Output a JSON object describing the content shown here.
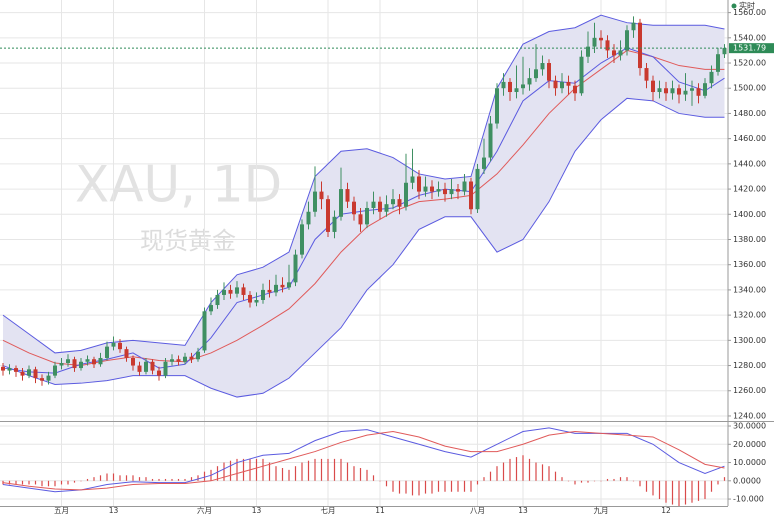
{
  "chart_data": [
    {
      "type": "candlestick",
      "watermark": "XAU, 1D",
      "subtitle": "现货黄金",
      "status": "实时",
      "last_price": 1531.79,
      "last_price_color": "#2e8b57",
      "categories": [
        null,
        null,
        null,
        null,
        null,
        null,
        null,
        null,
        null,
        "五月",
        null,
        null,
        null,
        null,
        null,
        null,
        null,
        "13",
        null,
        null,
        null,
        null,
        null,
        null,
        null,
        null,
        null,
        null,
        null,
        null,
        null,
        "六月",
        null,
        null,
        null,
        null,
        null,
        null,
        null,
        "13",
        null,
        null,
        null,
        null,
        null,
        null,
        null,
        null,
        null,
        null,
        "七月",
        null,
        null,
        null,
        null,
        null,
        null,
        null,
        "11",
        null,
        null,
        null,
        null,
        null,
        null,
        null,
        null,
        null,
        null,
        null,
        null,
        null,
        null,
        "八月",
        null,
        null,
        null,
        null,
        null,
        null,
        "13",
        null,
        null,
        null,
        null,
        null,
        null,
        null,
        null,
        null,
        null,
        null,
        "九月",
        null,
        null,
        null,
        null,
        null,
        null,
        null,
        null,
        null,
        "12",
        null,
        null,
        null,
        null,
        null,
        null,
        null,
        null,
        null
      ],
      "open": [
        1279,
        1276,
        1278,
        1275,
        1272,
        1277,
        1270,
        1268,
        1272,
        1280,
        1282,
        1285,
        1278,
        1283,
        1285,
        1281,
        1286,
        1295,
        1298,
        1293,
        1286,
        1280,
        1275,
        1283,
        1276,
        1272,
        1283,
        1285,
        1283,
        1287,
        1285,
        1292,
        1323,
        1328,
        1336,
        1340,
        1337,
        1342,
        1336,
        1330,
        1332,
        1340,
        1338,
        1344,
        1342,
        1346,
        1368,
        1392,
        1402,
        1418,
        1412,
        1386,
        1398,
        1420,
        1410,
        1400,
        1392,
        1405,
        1410,
        1402,
        1408,
        1412,
        1406,
        1425,
        1430,
        1418,
        1422,
        1418,
        1420,
        1416,
        1420,
        1418,
        1426,
        1404,
        1436,
        1445,
        1472,
        1500,
        1505,
        1497,
        1500,
        1503,
        1508,
        1515,
        1520,
        1506,
        1500,
        1505,
        1502,
        1496,
        1525,
        1533,
        1540,
        1538,
        1530,
        1526,
        1530,
        1546,
        1552,
        1516,
        1506,
        1497,
        1500,
        1496,
        1500,
        1495,
        1498,
        1500,
        1494,
        1504,
        1513,
        1527
      ],
      "high": [
        1282,
        1281,
        1280,
        1278,
        1280,
        1279,
        1273,
        1275,
        1283,
        1286,
        1289,
        1287,
        1286,
        1288,
        1287,
        1290,
        1299,
        1303,
        1301,
        1295,
        1288,
        1283,
        1286,
        1285,
        1279,
        1286,
        1289,
        1288,
        1290,
        1290,
        1294,
        1326,
        1334,
        1340,
        1346,
        1344,
        1347,
        1345,
        1339,
        1338,
        1345,
        1348,
        1352,
        1350,
        1360,
        1372,
        1396,
        1410,
        1438,
        1426,
        1415,
        1403,
        1437,
        1425,
        1414,
        1405,
        1410,
        1418,
        1414,
        1415,
        1420,
        1416,
        1448,
        1452,
        1435,
        1430,
        1427,
        1426,
        1425,
        1428,
        1424,
        1432,
        1429,
        1440,
        1460,
        1478,
        1504,
        1512,
        1508,
        1518,
        1525,
        1516,
        1535,
        1526,
        1523,
        1510,
        1512,
        1510,
        1506,
        1530,
        1545,
        1552,
        1546,
        1542,
        1535,
        1538,
        1550,
        1557,
        1555,
        1520,
        1510,
        1506,
        1505,
        1506,
        1503,
        1512,
        1506,
        1504,
        1508,
        1518,
        1532,
        1535
      ],
      "low": [
        1272,
        1273,
        1271,
        1268,
        1270,
        1266,
        1264,
        1265,
        1270,
        1277,
        1279,
        1275,
        1276,
        1280,
        1278,
        1279,
        1284,
        1292,
        1290,
        1283,
        1276,
        1272,
        1273,
        1273,
        1268,
        1270,
        1280,
        1280,
        1281,
        1282,
        1283,
        1290,
        1320,
        1325,
        1332,
        1333,
        1334,
        1332,
        1326,
        1327,
        1329,
        1334,
        1335,
        1338,
        1340,
        1343,
        1365,
        1388,
        1398,
        1404,
        1382,
        1381,
        1395,
        1405,
        1395,
        1386,
        1389,
        1400,
        1396,
        1398,
        1404,
        1400,
        1403,
        1420,
        1412,
        1414,
        1412,
        1414,
        1410,
        1412,
        1412,
        1415,
        1400,
        1401,
        1432,
        1442,
        1468,
        1494,
        1490,
        1492,
        1495,
        1498,
        1505,
        1510,
        1500,
        1494,
        1496,
        1495,
        1490,
        1494,
        1520,
        1528,
        1532,
        1524,
        1520,
        1522,
        1526,
        1540,
        1510,
        1500,
        1490,
        1492,
        1490,
        1491,
        1488,
        1490,
        1486,
        1488,
        1492,
        1500,
        1510,
        1524
      ],
      "close": [
        1276,
        1278,
        1275,
        1272,
        1277,
        1270,
        1268,
        1272,
        1280,
        1282,
        1285,
        1278,
        1283,
        1285,
        1281,
        1286,
        1295,
        1298,
        1293,
        1286,
        1280,
        1275,
        1283,
        1276,
        1272,
        1283,
        1285,
        1283,
        1287,
        1285,
        1291,
        1323,
        1328,
        1336,
        1340,
        1337,
        1342,
        1336,
        1330,
        1332,
        1340,
        1338,
        1344,
        1342,
        1346,
        1368,
        1392,
        1402,
        1418,
        1412,
        1386,
        1398,
        1420,
        1410,
        1400,
        1392,
        1405,
        1410,
        1402,
        1408,
        1412,
        1406,
        1425,
        1430,
        1418,
        1422,
        1418,
        1420,
        1416,
        1420,
        1418,
        1426,
        1404,
        1436,
        1445,
        1472,
        1500,
        1505,
        1497,
        1500,
        1503,
        1508,
        1515,
        1520,
        1506,
        1500,
        1505,
        1502,
        1496,
        1525,
        1533,
        1540,
        1538,
        1530,
        1526,
        1530,
        1546,
        1552,
        1516,
        1506,
        1497,
        1500,
        1496,
        1500,
        1495,
        1498,
        1500,
        1494,
        1504,
        1513,
        1527,
        1532
      ],
      "up_color": "#3f8f62",
      "down_color": "#c9392f",
      "bands": {
        "x": [
          0,
          4,
          8,
          12,
          16,
          20,
          24,
          28,
          32,
          36,
          40,
          44,
          48,
          52,
          56,
          60,
          64,
          68,
          72,
          76,
          80,
          84,
          88,
          92,
          96,
          100,
          104,
          108,
          111
        ],
        "upper": [
          1320,
          1305,
          1290,
          1292,
          1298,
          1300,
          1298,
          1296,
          1330,
          1352,
          1358,
          1370,
          1430,
          1450,
          1452,
          1445,
          1432,
          1428,
          1430,
          1500,
          1535,
          1545,
          1548,
          1558,
          1552,
          1550,
          1550,
          1550,
          1547
        ],
        "middle": [
          1300,
          1290,
          1282,
          1280,
          1284,
          1287,
          1284,
          1283,
          1290,
          1300,
          1312,
          1325,
          1345,
          1370,
          1390,
          1402,
          1410,
          1412,
          1415,
          1432,
          1455,
          1480,
          1500,
          1515,
          1530,
          1525,
          1518,
          1515,
          1515
        ],
        "lower": [
          1280,
          1272,
          1265,
          1266,
          1268,
          1272,
          1272,
          1272,
          1262,
          1255,
          1258,
          1270,
          1290,
          1310,
          1340,
          1360,
          1388,
          1398,
          1398,
          1370,
          1380,
          1410,
          1450,
          1475,
          1492,
          1490,
          1480,
          1477,
          1477
        ],
        "inner": [
          1278,
          1275,
          1274,
          1281,
          1285,
          1290,
          1278,
          1281,
          1302,
          1330,
          1336,
          1342,
          1380,
          1400,
          1403,
          1405,
          1415,
          1420,
          1418,
          1450,
          1490,
          1506,
          1504,
          1520,
          1532,
          1525,
          1505,
          1498,
          1508
        ],
        "band_color": "#5b5be0",
        "middle_color": "#e05a5a",
        "fill": "#e3e3f2"
      },
      "ylim": [
        1236,
        1570
      ],
      "yticks": [
        {
          "value": 1240,
          "label": "1240.00"
        },
        {
          "value": 1260,
          "label": "1260.00"
        },
        {
          "value": 1280,
          "label": "1280.00"
        },
        {
          "value": 1300,
          "label": "1300.00"
        },
        {
          "value": 1320,
          "label": "1320.00"
        },
        {
          "value": 1340,
          "label": "1340.00"
        },
        {
          "value": 1360,
          "label": "1360.00"
        },
        {
          "value": 1380,
          "label": "1380.00"
        },
        {
          "value": 1400,
          "label": "1400.00"
        },
        {
          "value": 1420,
          "label": "1420.00"
        },
        {
          "value": 1440,
          "label": "1440.00"
        },
        {
          "value": 1460,
          "label": "1460.00"
        },
        {
          "value": 1480,
          "label": "1480.00"
        },
        {
          "value": 1500,
          "label": "1500.00"
        },
        {
          "value": 1520,
          "label": "1520.00"
        },
        {
          "value": 1540,
          "label": "1540.00"
        },
        {
          "value": 1560,
          "label": "1560.00"
        }
      ],
      "grid": true
    },
    {
      "type": "macd",
      "histogram": [
        -2,
        -2,
        -2,
        -2,
        -2,
        -2,
        -3,
        -3,
        -3,
        -2,
        -2,
        -1,
        0,
        1,
        2,
        3,
        4,
        4,
        3,
        3,
        3,
        2,
        2,
        1,
        1,
        1,
        1,
        1,
        1,
        2,
        3,
        5,
        6,
        8,
        10,
        11,
        12,
        12,
        12,
        12,
        12,
        10,
        8,
        7,
        6,
        8,
        10,
        11,
        12,
        12,
        12,
        12,
        12,
        10,
        8,
        7,
        6,
        3,
        0,
        -3,
        -6,
        -7,
        -7,
        -8,
        -8,
        -7,
        -7,
        -6,
        -6,
        -6,
        -6,
        -6,
        -6,
        -2,
        2,
        5,
        8,
        10,
        12,
        13,
        14,
        12,
        10,
        9,
        8,
        5,
        2,
        0,
        -2,
        -1,
        -1,
        0,
        0,
        1,
        1,
        2,
        2,
        0,
        -3,
        -6,
        -8,
        -10,
        -12,
        -13,
        -14,
        -13,
        -12,
        -11,
        -10,
        -6,
        -2,
        2
      ],
      "hist_color": "#d94a4a",
      "x": [
        0,
        4,
        8,
        12,
        16,
        20,
        24,
        28,
        32,
        36,
        40,
        44,
        48,
        52,
        56,
        60,
        64,
        68,
        72,
        76,
        80,
        84,
        88,
        92,
        96,
        100,
        104,
        108,
        111
      ],
      "series": [
        {
          "color": "#5b5be0",
          "values": [
            -2,
            -4,
            -6,
            -5,
            -2,
            -0.5,
            -1,
            -1,
            3,
            10,
            14,
            15,
            22,
            27,
            28,
            24,
            20,
            16,
            13,
            20,
            27,
            29,
            26,
            26,
            26,
            20,
            10,
            4,
            8
          ]
        },
        {
          "color": "#e05a5a",
          "values": [
            -1,
            -3,
            -4.5,
            -5,
            -4,
            -2,
            -1.5,
            -1.5,
            0,
            4,
            8,
            12,
            16,
            21,
            25,
            27,
            24,
            19,
            16,
            16,
            20,
            25,
            27,
            26,
            25,
            24,
            17,
            9,
            7
          ]
        }
      ],
      "ylim": [
        -13.8,
        32.2
      ],
      "yticks": [
        {
          "value": -10,
          "label": "-10.000"
        },
        {
          "value": 0,
          "label": "0.0000"
        },
        {
          "value": 10,
          "label": "10.0000"
        },
        {
          "value": 20,
          "label": "20.0000"
        },
        {
          "value": 30,
          "label": "30.0000"
        }
      ],
      "grid": true
    }
  ]
}
